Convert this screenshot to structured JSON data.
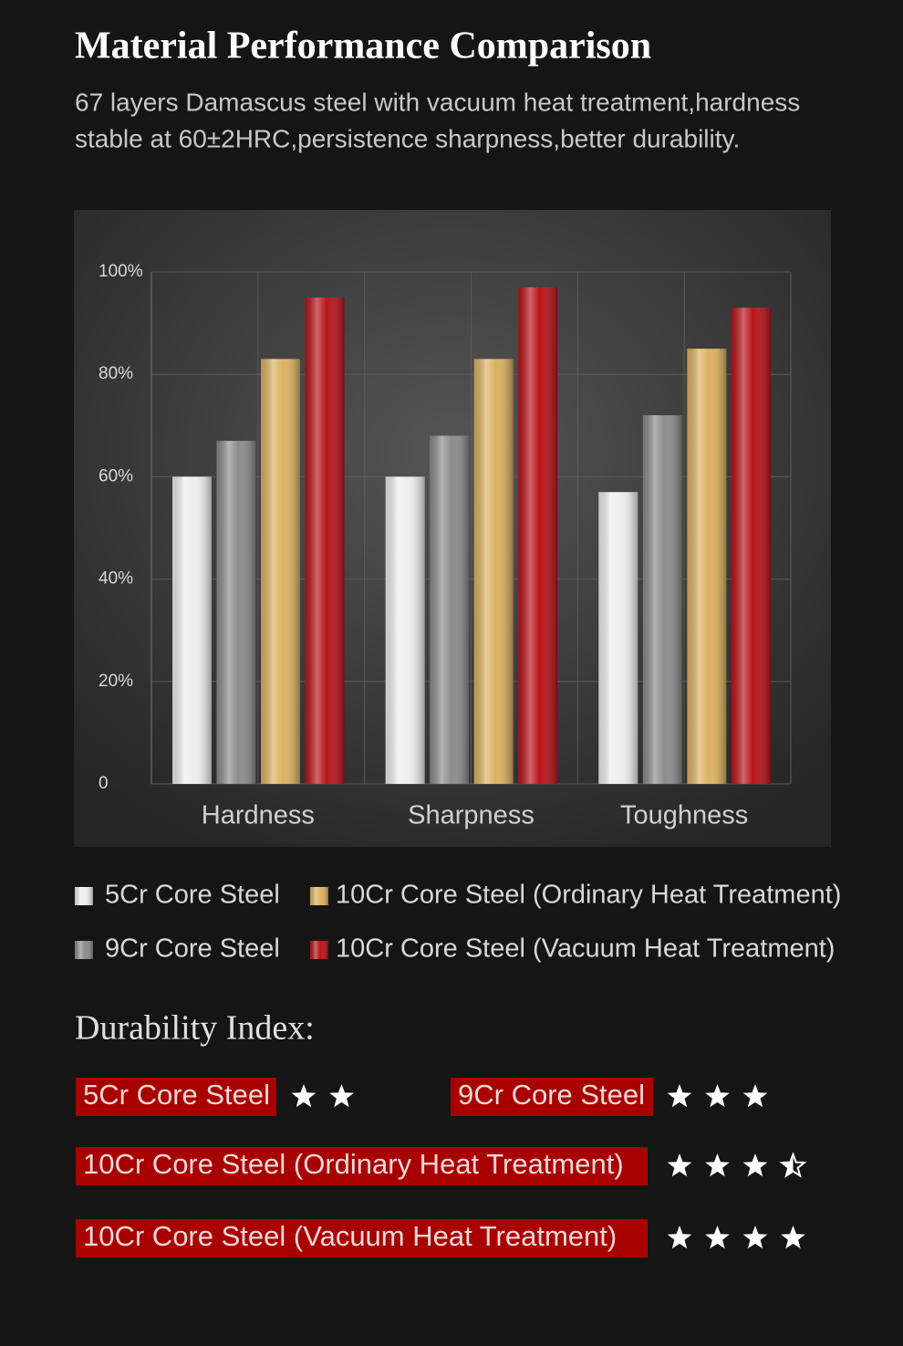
{
  "chart_data": {
    "type": "bar",
    "title": "Material Performance Comparison",
    "subtitle": [
      "67 layers Damascus steel with vacuum heat treatment,hardness",
      "stable at 60±2HRC,persistence sharpness,better durability."
    ],
    "categories": [
      "Hardness",
      "Sharpness",
      "Toughness"
    ],
    "series": [
      {
        "name": "5Cr Core Steel",
        "color": "#eeeeee",
        "values": [
          60,
          60,
          57
        ]
      },
      {
        "name": "9Cr Core Steel",
        "color": "#8c8c8c",
        "values": [
          67,
          68,
          72
        ]
      },
      {
        "name": "10Cr Core Steel (Ordinary Heat Treatment)",
        "color": "#dcb262",
        "values": [
          83,
          83,
          85
        ]
      },
      {
        "name": "10Cr Core Steel (Vacuum Heat Treatment)",
        "color": "#b8141a",
        "values": [
          95,
          97,
          93
        ]
      }
    ],
    "ylim": [
      0,
      100
    ],
    "yticks": [
      0,
      {
        "value": 20,
        "label": "20%"
      },
      {
        "value": 40,
        "label": "40%"
      },
      {
        "value": 60,
        "label": "60%"
      },
      {
        "value": 80,
        "label": "80%"
      },
      {
        "value": 100,
        "label": "100%"
      }
    ],
    "grid": true
  },
  "durability": {
    "title": "Durability  Index:",
    "items": [
      {
        "label": "5Cr Core Steel",
        "stars": 2
      },
      {
        "label": "9Cr Core Steel",
        "stars": 3
      },
      {
        "label": "10Cr Core Steel (Ordinary Heat Treatment)",
        "stars": 3.5
      },
      {
        "label": "10Cr Core Steel (Vacuum Heat Treatment)",
        "stars": 4
      }
    ]
  }
}
